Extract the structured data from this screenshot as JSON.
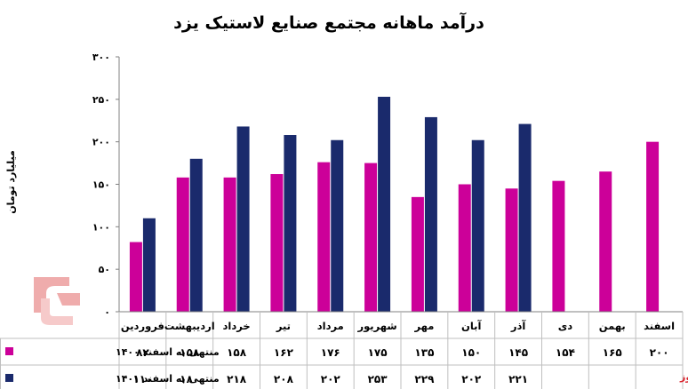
{
  "chart_data": {
    "type": "bar",
    "title": "درآمد ماهانه مجتمع صنایع لاستیک یزد",
    "ylabel": "میلیارد تومان",
    "ylim": [
      0,
      300
    ],
    "yticks": [
      "۰",
      "۵۰",
      "۱۰۰",
      "۱۵۰",
      "۲۰۰",
      "۲۵۰",
      "۳۰۰"
    ],
    "categories": [
      "فروردین",
      "اردیبهشت",
      "خرداد",
      "تیر",
      "مرداد",
      "شهریور",
      "مهر",
      "آبان",
      "آذر",
      "دی",
      "بهمن",
      "اسفند"
    ],
    "series": [
      {
        "name": "منتهی به اسفند ۱۴۰۰",
        "color": "#cc0099",
        "values": [
          82,
          158,
          158,
          162,
          176,
          175,
          135,
          150,
          145,
          154,
          165,
          200
        ],
        "labels": [
          "۸۲",
          "۱۵۸",
          "۱۵۸",
          "۱۶۲",
          "۱۷۶",
          "۱۷۵",
          "۱۳۵",
          "۱۵۰",
          "۱۴۵",
          "۱۵۴",
          "۱۶۵",
          "۲۰۰"
        ]
      },
      {
        "name": "منتهی به اسفند ۱۴۰۱",
        "color": "#1a2a6c",
        "values": [
          110,
          180,
          218,
          208,
          202,
          253,
          229,
          202,
          221,
          null,
          null,
          null
        ],
        "labels": [
          "۱۱۰",
          "۱۸۰",
          "۲۱۸",
          "۲۰۸",
          "۲۰۲",
          "۲۵۳",
          "۲۲۹",
          "۲۰۲",
          "۲۲۱",
          "",
          "",
          ""
        ]
      }
    ],
    "gridlines": false,
    "legend": "data-table-left",
    "source": "بورس نیوز"
  }
}
